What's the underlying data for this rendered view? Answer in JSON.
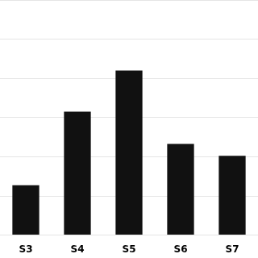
{
  "chart_data": {
    "type": "bar",
    "categories": [
      "S3",
      "S4",
      "S5",
      "S6",
      "S7"
    ],
    "values": [
      170,
      420,
      560,
      310,
      270
    ],
    "color": "#111111",
    "ylim": [
      0,
      800
    ],
    "yticks": [
      0,
      133.33333333333334,
      266.6666666666667,
      400,
      533.3333333333334,
      666.6666666666667,
      800
    ],
    "grid": true,
    "tick_labels": "x"
  }
}
